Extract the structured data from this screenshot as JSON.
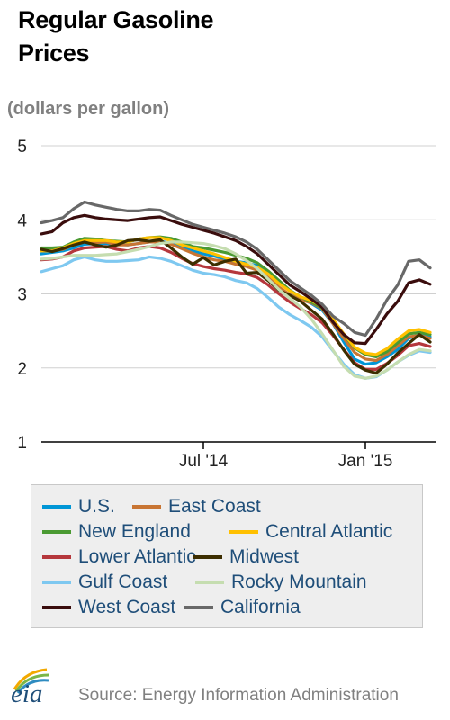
{
  "header": {
    "title_line1": "Regular Gasoline",
    "title_line2": "Prices"
  },
  "footer": {
    "logo_text": "eia",
    "source": "Source: Energy Information Administration"
  },
  "chart_data": {
    "type": "line",
    "ylabel": "(dollars per gallon)",
    "ylim": [
      1,
      5
    ],
    "yticks": [
      1,
      2,
      3,
      4,
      5
    ],
    "x_ticks": [
      "Jul '14",
      "Jan '15"
    ],
    "x_tick_positions": [
      6,
      12
    ],
    "xlim": [
      0,
      14.6
    ],
    "grid": "horizontal",
    "x": [
      0.0,
      0.4,
      0.8,
      1.2,
      1.6,
      2.0,
      2.4,
      2.8,
      3.2,
      3.6,
      4.0,
      4.4,
      4.8,
      5.2,
      5.6,
      6.0,
      6.4,
      6.8,
      7.2,
      7.6,
      8.0,
      8.4,
      8.8,
      9.2,
      9.6,
      10.0,
      10.4,
      10.8,
      11.2,
      11.6,
      12.0,
      12.4,
      12.8,
      13.2,
      13.6,
      14.0,
      14.4
    ],
    "series": [
      {
        "name": "U.S.",
        "color": "#0096d6",
        "values": [
          3.54,
          3.56,
          3.58,
          3.62,
          3.67,
          3.68,
          3.68,
          3.67,
          3.66,
          3.68,
          3.7,
          3.71,
          3.68,
          3.63,
          3.58,
          3.54,
          3.51,
          3.47,
          3.44,
          3.42,
          3.38,
          3.3,
          3.18,
          3.04,
          2.94,
          2.87,
          2.78,
          2.6,
          2.35,
          2.12,
          2.05,
          2.07,
          2.15,
          2.25,
          2.4,
          2.45,
          2.42
        ]
      },
      {
        "name": "East Coast",
        "color": "#c87533",
        "values": [
          3.58,
          3.58,
          3.6,
          3.66,
          3.7,
          3.69,
          3.7,
          3.66,
          3.66,
          3.68,
          3.7,
          3.7,
          3.67,
          3.61,
          3.55,
          3.5,
          3.46,
          3.44,
          3.4,
          3.37,
          3.32,
          3.22,
          3.09,
          2.99,
          2.92,
          2.88,
          2.8,
          2.6,
          2.4,
          2.21,
          2.12,
          2.1,
          2.18,
          2.3,
          2.42,
          2.44,
          2.4
        ]
      },
      {
        "name": "New England",
        "color": "#4a9a32",
        "values": [
          3.62,
          3.62,
          3.63,
          3.7,
          3.75,
          3.74,
          3.72,
          3.71,
          3.7,
          3.74,
          3.76,
          3.77,
          3.75,
          3.7,
          3.64,
          3.62,
          3.59,
          3.56,
          3.52,
          3.48,
          3.42,
          3.31,
          3.18,
          3.05,
          2.96,
          2.89,
          2.81,
          2.64,
          2.45,
          2.27,
          2.18,
          2.15,
          2.22,
          2.34,
          2.46,
          2.48,
          2.45
        ]
      },
      {
        "name": "Central Atlantic",
        "color": "#ffc000",
        "values": [
          3.58,
          3.58,
          3.62,
          3.68,
          3.72,
          3.72,
          3.72,
          3.7,
          3.7,
          3.74,
          3.76,
          3.76,
          3.72,
          3.66,
          3.62,
          3.58,
          3.54,
          3.49,
          3.44,
          3.4,
          3.36,
          3.27,
          3.14,
          3.04,
          2.96,
          2.91,
          2.83,
          2.66,
          2.46,
          2.28,
          2.2,
          2.18,
          2.26,
          2.39,
          2.5,
          2.52,
          2.48
        ]
      },
      {
        "name": "Lower Atlantic",
        "color": "#b5373c",
        "values": [
          3.46,
          3.47,
          3.5,
          3.58,
          3.62,
          3.63,
          3.64,
          3.6,
          3.58,
          3.62,
          3.64,
          3.62,
          3.56,
          3.48,
          3.41,
          3.37,
          3.34,
          3.32,
          3.29,
          3.27,
          3.22,
          3.12,
          3.0,
          2.89,
          2.8,
          2.72,
          2.61,
          2.44,
          2.25,
          2.07,
          1.98,
          1.98,
          2.06,
          2.17,
          2.3,
          2.33,
          2.29
        ]
      },
      {
        "name": "Midwest",
        "color": "#3d2e00",
        "values": [
          3.6,
          3.57,
          3.61,
          3.66,
          3.7,
          3.66,
          3.63,
          3.66,
          3.72,
          3.73,
          3.71,
          3.73,
          3.62,
          3.5,
          3.4,
          3.49,
          3.39,
          3.44,
          3.47,
          3.28,
          3.29,
          3.18,
          3.05,
          2.98,
          2.9,
          2.78,
          2.66,
          2.46,
          2.24,
          2.05,
          1.97,
          1.93,
          2.05,
          2.2,
          2.33,
          2.45,
          2.35
        ]
      },
      {
        "name": "Gulf Coast",
        "color": "#7ec8f0",
        "values": [
          3.3,
          3.34,
          3.38,
          3.46,
          3.5,
          3.46,
          3.44,
          3.44,
          3.45,
          3.46,
          3.5,
          3.48,
          3.44,
          3.38,
          3.32,
          3.28,
          3.26,
          3.23,
          3.18,
          3.15,
          3.07,
          2.95,
          2.82,
          2.72,
          2.64,
          2.55,
          2.42,
          2.23,
          2.05,
          1.91,
          1.86,
          1.88,
          1.97,
          2.08,
          2.17,
          2.23,
          2.21
        ]
      },
      {
        "name": "Rocky Mountain",
        "color": "#c5ddb0",
        "values": [
          3.47,
          3.48,
          3.5,
          3.52,
          3.52,
          3.52,
          3.53,
          3.54,
          3.57,
          3.6,
          3.64,
          3.68,
          3.7,
          3.7,
          3.69,
          3.68,
          3.65,
          3.61,
          3.54,
          3.45,
          3.34,
          3.2,
          3.06,
          2.94,
          2.82,
          2.66,
          2.46,
          2.24,
          2.02,
          1.89,
          1.86,
          1.89,
          1.97,
          2.08,
          2.18,
          2.25,
          2.23
        ]
      },
      {
        "name": "West Coast",
        "color": "#3a0d0d",
        "values": [
          3.81,
          3.84,
          3.96,
          4.03,
          4.06,
          4.03,
          4.01,
          4.0,
          3.99,
          4.01,
          4.03,
          4.04,
          3.99,
          3.94,
          3.9,
          3.86,
          3.82,
          3.77,
          3.72,
          3.64,
          3.54,
          3.4,
          3.26,
          3.12,
          3.03,
          2.93,
          2.82,
          2.62,
          2.45,
          2.34,
          2.33,
          2.52,
          2.73,
          2.9,
          3.15,
          3.19,
          3.13
        ]
      },
      {
        "name": "California",
        "color": "#686868",
        "values": [
          3.96,
          3.99,
          4.03,
          4.15,
          4.24,
          4.2,
          4.17,
          4.14,
          4.12,
          4.12,
          4.14,
          4.13,
          4.06,
          4.0,
          3.94,
          3.9,
          3.86,
          3.82,
          3.77,
          3.7,
          3.6,
          3.46,
          3.32,
          3.18,
          3.08,
          2.98,
          2.86,
          2.7,
          2.6,
          2.48,
          2.44,
          2.66,
          2.92,
          3.12,
          3.44,
          3.46,
          3.35
        ]
      }
    ]
  }
}
